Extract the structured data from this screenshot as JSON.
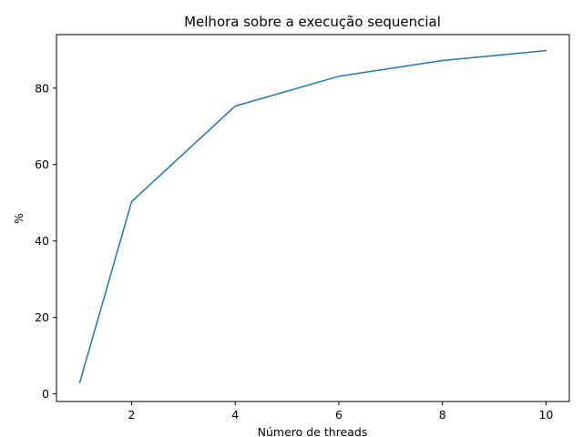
{
  "chart_data": {
    "type": "line",
    "title": "Melhora sobre a execução sequencial",
    "xlabel": "Número de threads",
    "ylabel": "%",
    "xlim": [
      0.55,
      10.45
    ],
    "ylim": [
      -2,
      94
    ],
    "xticks": [
      2,
      4,
      6,
      8,
      10
    ],
    "yticks": [
      0,
      20,
      40,
      60,
      80
    ],
    "grid": false,
    "series": [
      {
        "x": [
          1,
          2,
          4,
          6,
          8,
          10
        ],
        "values": [
          3.0,
          50.3,
          75.3,
          83.1,
          87.2,
          89.8
        ],
        "color": "#1f77b4"
      }
    ]
  }
}
